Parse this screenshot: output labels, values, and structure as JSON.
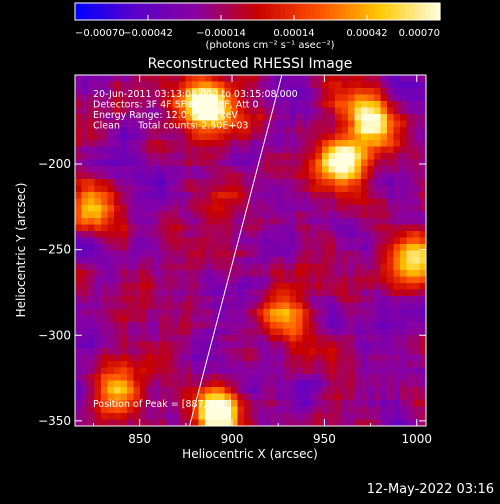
{
  "chart_data": {
    "type": "heatmap",
    "title": "Reconstructed RHESSI Image",
    "xlabel": "Heliocentric X (arcsec)",
    "ylabel": "Heliocentric Y (arcsec)",
    "xlim": [
      815,
      1005
    ],
    "ylim": [
      -353,
      -148
    ],
    "xticks": [
      850,
      900,
      950,
      1000
    ],
    "xtick_labels": [
      "850",
      "900",
      "950",
      "1000"
    ],
    "yticks": [
      -200,
      -250,
      -300,
      -350
    ],
    "ytick_labels": [
      "−200",
      "−250",
      "−300",
      "−350"
    ],
    "colorbar": {
      "range": [
        -0.0007,
        0.0007
      ],
      "ticks": [
        -0.0007,
        -0.00042,
        -0.00014,
        0.00014,
        0.00042,
        0.0007
      ],
      "tick_labels": [
        "−0.00070",
        "−0.00042",
        "−0.00014",
        "0.00014",
        "0.00042",
        "0.00070"
      ],
      "label": "(photons cm⁻² s⁻¹ asec⁻²)",
      "colors": [
        "#0000ff",
        "#5a00c8",
        "#8a00a0",
        "#c80000",
        "#ff5000",
        "#ffc800",
        "#ffffe0"
      ]
    },
    "annotations": [
      "20-Jun-2011 03:13:08.000 to 03:15:08.000",
      "Detectors: 3F 4F 5F 6F 7F 8F, Att 0",
      "Energy Range: 12.0 - 25.0 keV",
      "Clean      Total counts: 2.50E+03"
    ],
    "peak_label": "Position of Peak = [887,-169]",
    "limb_line": {
      "x": [
        877,
        927
      ],
      "y": [
        -353,
        -148
      ]
    },
    "bright_sources": [
      {
        "x": 887,
        "y": -166,
        "level": 0.95
      },
      {
        "x": 893,
        "y": -346,
        "level": 0.95
      },
      {
        "x": 960,
        "y": -200,
        "level": 0.9
      },
      {
        "x": 975,
        "y": -175,
        "level": 0.75
      },
      {
        "x": 825,
        "y": -225,
        "level": 0.55
      },
      {
        "x": 998,
        "y": -255,
        "level": 0.7
      },
      {
        "x": 930,
        "y": -290,
        "level": 0.5
      },
      {
        "x": 838,
        "y": -330,
        "level": 0.45
      }
    ],
    "colorbar_image": true,
    "grid": false
  },
  "footer": {
    "timestamp": "12-May-2022 03:16"
  }
}
